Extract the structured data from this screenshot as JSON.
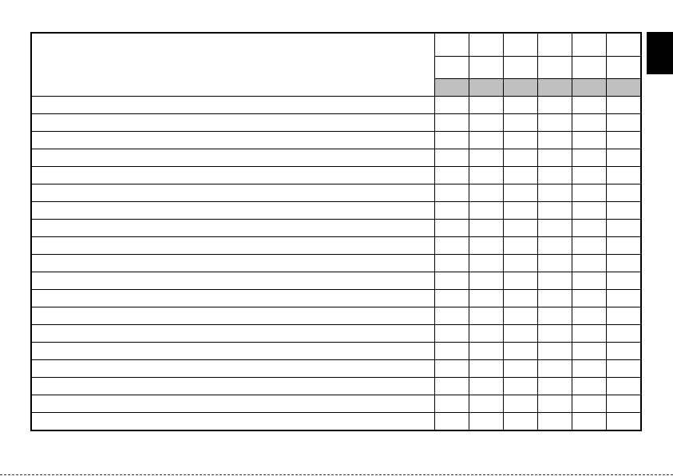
{
  "colors": {
    "border": "#000000",
    "header_shade": "#c0c0c0",
    "side_tab": "#000000"
  },
  "table": {
    "header_rows": [
      [
        "",
        "",
        "",
        "",
        "",
        ""
      ],
      [
        "",
        "",
        "",
        "",
        "",
        ""
      ],
      [
        "",
        "",
        "",
        "",
        "",
        ""
      ]
    ],
    "body_rows": [
      [
        "",
        "",
        "",
        "",
        "",
        "",
        ""
      ],
      [
        "",
        "",
        "",
        "",
        "",
        "",
        ""
      ],
      [
        "",
        "",
        "",
        "",
        "",
        "",
        ""
      ],
      [
        "",
        "",
        "",
        "",
        "",
        "",
        ""
      ],
      [
        "",
        "",
        "",
        "",
        "",
        "",
        ""
      ],
      [
        "",
        "",
        "",
        "",
        "",
        "",
        ""
      ],
      [
        "",
        "",
        "",
        "",
        "",
        "",
        ""
      ],
      [
        "",
        "",
        "",
        "",
        "",
        "",
        ""
      ],
      [
        "",
        "",
        "",
        "",
        "",
        "",
        ""
      ],
      [
        "",
        "",
        "",
        "",
        "",
        "",
        ""
      ],
      [
        "",
        "",
        "",
        "",
        "",
        "",
        ""
      ],
      [
        "",
        "",
        "",
        "",
        "",
        "",
        ""
      ],
      [
        "",
        "",
        "",
        "",
        "",
        "",
        ""
      ],
      [
        "",
        "",
        "",
        "",
        "",
        "",
        ""
      ],
      [
        "",
        "",
        "",
        "",
        "",
        "",
        ""
      ],
      [
        "",
        "",
        "",
        "",
        "",
        "",
        ""
      ],
      [
        "",
        "",
        "",
        "",
        "",
        "",
        ""
      ],
      [
        "",
        "",
        "",
        "",
        "",
        "",
        ""
      ],
      [
        "",
        "",
        "",
        "",
        "",
        "",
        ""
      ]
    ]
  }
}
